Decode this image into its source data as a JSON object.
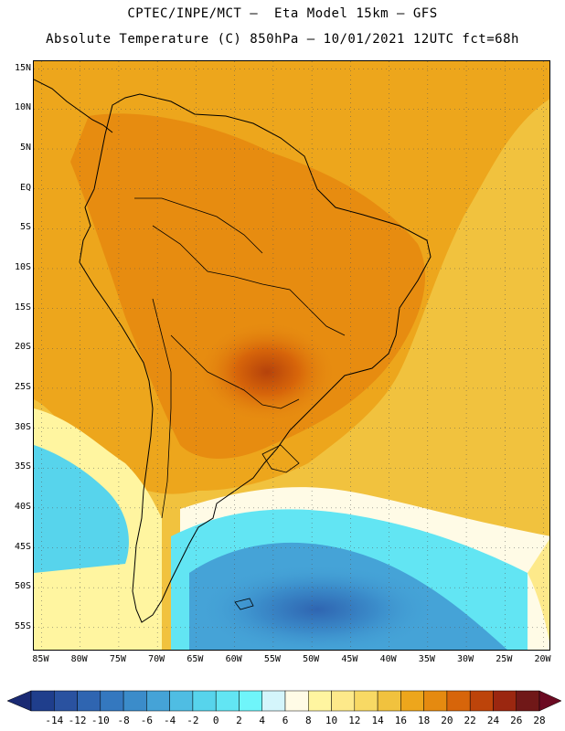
{
  "header": {
    "line1": "CPTEC/INPE/MCT –  Eta Model 15km – GFS",
    "line2": "Absolute Temperature (C) 850hPa – 10/01/2021 12UTC fct=68h"
  },
  "map": {
    "lat_ticks": [
      "15N",
      "10N",
      "5N",
      "EQ",
      "5S",
      "10S",
      "15S",
      "20S",
      "25S",
      "30S",
      "35S",
      "40S",
      "45S",
      "50S",
      "55S"
    ],
    "lat_values": [
      15,
      10,
      5,
      0,
      -5,
      -10,
      -15,
      -20,
      -25,
      -30,
      -35,
      -40,
      -45,
      -50,
      -55
    ],
    "lon_ticks": [
      "85W",
      "80W",
      "75W",
      "70W",
      "65W",
      "60W",
      "55W",
      "50W",
      "45W",
      "40W",
      "35W",
      "30W",
      "25W",
      "20W"
    ],
    "lon_values": [
      -85,
      -80,
      -75,
      -70,
      -65,
      -60,
      -55,
      -50,
      -45,
      -40,
      -35,
      -30,
      -25,
      -20
    ],
    "extent": {
      "lon_min": -86,
      "lon_max": -19,
      "lat_min": -58,
      "lat_max": 16
    },
    "gridlines": "dotted"
  },
  "colorbar": {
    "labels": [
      "-14",
      "-12",
      "-10",
      "-8",
      "-6",
      "-4",
      "-2",
      "0",
      "2",
      "4",
      "6",
      "8",
      "10",
      "12",
      "14",
      "16",
      "18",
      "20",
      "22",
      "24",
      "26",
      "28"
    ],
    "colors": [
      "#1f3e8c",
      "#2a52a0",
      "#2f65b1",
      "#3478bf",
      "#3b8cca",
      "#45a3d7",
      "#4fbde3",
      "#57d4ec",
      "#62e5f3",
      "#6ff5fa",
      "#d4f5fb",
      "#fffbe6",
      "#fff5a0",
      "#fde98a",
      "#f8d964",
      "#f1c23e",
      "#eda61c",
      "#e58a10",
      "#d7650a",
      "#bd440a",
      "#9b2710",
      "#701818"
    ],
    "low_end_color": "#1a2a73",
    "high_end_color": "#6b0a22"
  }
}
